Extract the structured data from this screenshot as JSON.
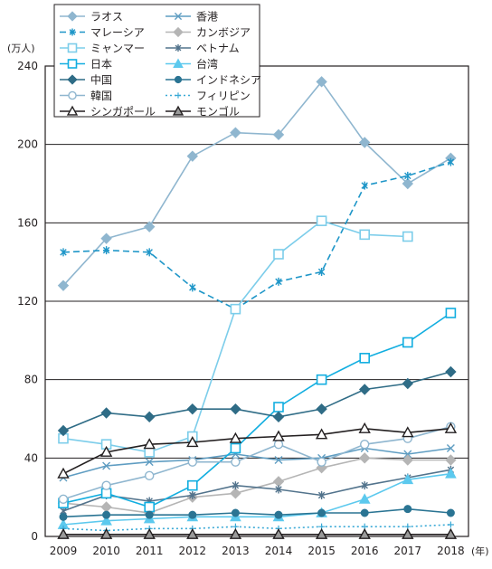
{
  "chart_data": {
    "type": "line",
    "ylabel": "(万人)",
    "xlabel": "(年)",
    "ylim": [
      0,
      240
    ],
    "yticks": [
      0,
      40,
      80,
      120,
      160,
      200,
      240
    ],
    "grid": true,
    "legend_position": "top-left",
    "x": [
      "2009",
      "2010",
      "2011",
      "2012",
      "2013",
      "2014",
      "2015",
      "2016",
      "2017",
      "2018"
    ],
    "series": [
      {
        "name": "ラオス",
        "color": "#8fb6cf",
        "marker": "diamond",
        "dash": "solid",
        "values": [
          128,
          152,
          158,
          194,
          206,
          205,
          232,
          201,
          180,
          193
        ]
      },
      {
        "name": "香港",
        "color": "#5f9dc2",
        "marker": "x",
        "dash": "solid",
        "values": [
          30,
          36,
          38,
          39,
          42,
          39,
          40,
          45,
          42,
          45
        ]
      },
      {
        "name": "マレーシア",
        "color": "#1e96c8",
        "marker": "asterisk",
        "dash": "dashed",
        "values": [
          145,
          146,
          145,
          127,
          116,
          130,
          135,
          179,
          184,
          191
        ]
      },
      {
        "name": "カンボジア",
        "color": "#b5b5b5",
        "marker": "diamond",
        "dash": "solid",
        "values": [
          17,
          15,
          12,
          20,
          22,
          28,
          35,
          40,
          39,
          39
        ]
      },
      {
        "name": "ミャンマー",
        "color": "#7ccdea",
        "marker": "square-open",
        "dash": "solid",
        "values": [
          50,
          47,
          43,
          51,
          116,
          144,
          161,
          154,
          153,
          null
        ]
      },
      {
        "name": "ベトナム",
        "color": "#52738c",
        "marker": "asterisk",
        "dash": "solid",
        "values": [
          13,
          21,
          18,
          21,
          26,
          24,
          21,
          26,
          30,
          34
        ]
      },
      {
        "name": "日本",
        "color": "#12aee0",
        "marker": "square-open",
        "dash": "solid",
        "values": [
          17,
          22,
          15,
          26,
          45,
          66,
          80,
          91,
          99,
          114
        ]
      },
      {
        "name": "台湾",
        "color": "#5cc9ee",
        "marker": "triangle",
        "dash": "solid",
        "values": [
          6,
          8,
          9,
          10,
          10,
          10,
          12,
          19,
          29,
          32
        ]
      },
      {
        "name": "中国",
        "color": "#2f6c86",
        "marker": "diamond",
        "dash": "solid",
        "values": [
          54,
          63,
          61,
          65,
          65,
          61,
          65,
          75,
          78,
          84
        ]
      },
      {
        "name": "インドネシア",
        "color": "#2a7493",
        "marker": "circle",
        "dash": "solid",
        "values": [
          10,
          11,
          11,
          11,
          12,
          11,
          12,
          12,
          14,
          12
        ]
      },
      {
        "name": "韓国",
        "color": "#8fb6cf",
        "marker": "circle-open",
        "dash": "solid",
        "values": [
          19,
          26,
          31,
          38,
          38,
          47,
          38,
          47,
          50,
          56
        ]
      },
      {
        "name": "フィリピン",
        "color": "#39a9d6",
        "marker": "plus",
        "dash": "dotted",
        "values": [
          4,
          3,
          4,
          4,
          5,
          4,
          5,
          5,
          5,
          6
        ]
      },
      {
        "name": "シンガポール",
        "color": "#231f20",
        "marker": "triangle-open",
        "dash": "solid",
        "values": [
          32,
          43,
          47,
          48,
          50,
          51,
          52,
          55,
          53,
          55
        ]
      },
      {
        "name": "モンゴル",
        "color": "#231f20",
        "marker": "triangle-gray",
        "dash": "solid",
        "values": [
          1,
          1,
          1,
          1,
          1,
          1,
          1,
          1,
          1,
          1
        ]
      }
    ]
  }
}
